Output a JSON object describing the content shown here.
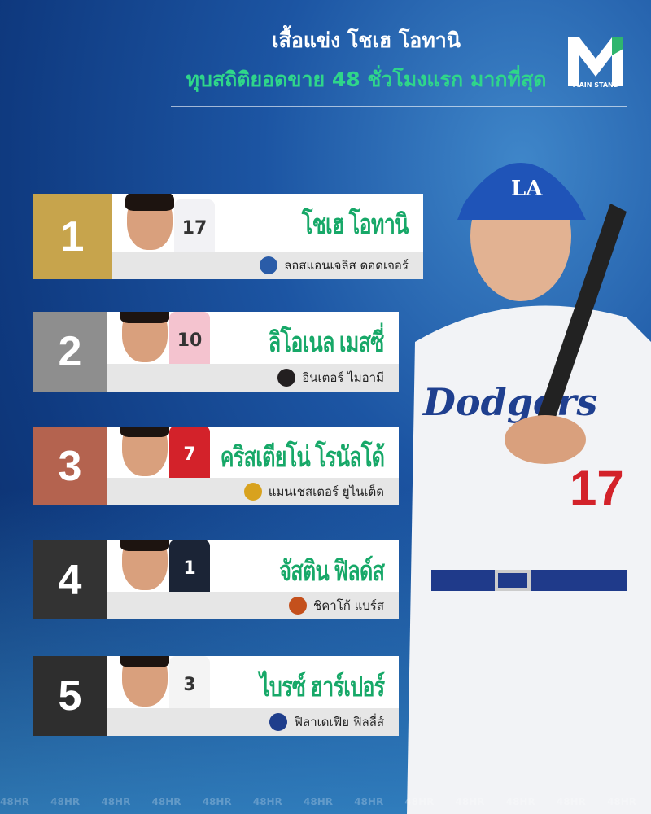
{
  "header": {
    "title": "เสื้อแข่ง โชเฮ โอทานิ",
    "subtitle": "ทุบสถิติยอดขาย 48 ชั่วโมงแรก มากที่สุด"
  },
  "logo": {
    "text": "MAIN STAND",
    "accent": "#2fb56e"
  },
  "colors": {
    "name_green": "#17a868",
    "subtitle_green": "#2fd68a"
  },
  "ranking": [
    {
      "rank": "1",
      "name": "โชเฮ โอทานิ",
      "team": "ลอสแอนเจลิส ดอดเจอร์",
      "jersey": "17",
      "rank_color": "#c7a44c",
      "shirt_color": "#f2f2f5",
      "team_color": "#2a5ca8"
    },
    {
      "rank": "2",
      "name": "ลิโอเนล เมสซี่",
      "team": "อินเตอร์ ไมอามี",
      "jersey": "10",
      "rank_color": "#8e8e8e",
      "shirt_color": "#f4c3cf",
      "team_color": "#231f20"
    },
    {
      "rank": "3",
      "name": "คริสเตียโน่ โรนัลโด้",
      "team": "แมนเชสเตอร์ ยูไนเต็ด",
      "jersey": "7",
      "rank_color": "#b4634f",
      "shirt_color": "#d3222a",
      "team_color": "#d8a21e"
    },
    {
      "rank": "4",
      "name": "จัสติน ฟิลด์ส",
      "team": "ชิคาโก้ แบร์ส",
      "jersey": "1",
      "rank_color": "#333333",
      "shirt_color": "#1b2436",
      "team_color": "#c4501c"
    },
    {
      "rank": "5",
      "name": "ไบรซ์ ฮาร์เปอร์",
      "team": "ฟิลาเดเฟีย ฟิลลี่ส์",
      "jersey": "3",
      "rank_color": "#2e2e2e",
      "shirt_color": "#f4f4f4",
      "team_color": "#1f3e8c"
    }
  ],
  "hero": {
    "cap_text": "LA",
    "jersey_text": "Dodgers",
    "number": "17"
  },
  "footer": {
    "text": "48HR"
  }
}
